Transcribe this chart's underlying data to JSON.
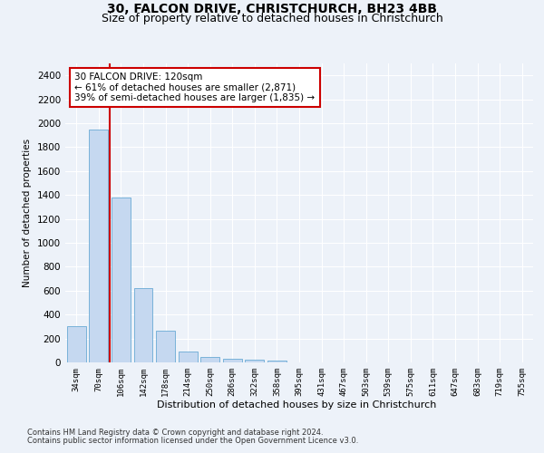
{
  "title_line1": "30, FALCON DRIVE, CHRISTCHURCH, BH23 4BB",
  "title_line2": "Size of property relative to detached houses in Christchurch",
  "xlabel": "Distribution of detached houses by size in Christchurch",
  "ylabel": "Number of detached properties",
  "footer_line1": "Contains HM Land Registry data © Crown copyright and database right 2024.",
  "footer_line2": "Contains public sector information licensed under the Open Government Licence v3.0.",
  "categories": [
    "34sqm",
    "70sqm",
    "106sqm",
    "142sqm",
    "178sqm",
    "214sqm",
    "250sqm",
    "286sqm",
    "322sqm",
    "358sqm",
    "395sqm",
    "431sqm",
    "467sqm",
    "503sqm",
    "539sqm",
    "575sqm",
    "611sqm",
    "647sqm",
    "683sqm",
    "719sqm",
    "755sqm"
  ],
  "values": [
    305,
    1945,
    1375,
    620,
    268,
    93,
    42,
    32,
    22,
    15,
    0,
    0,
    0,
    0,
    0,
    0,
    0,
    0,
    0,
    0,
    0
  ],
  "bar_color": "#c5d8f0",
  "bar_edge_color": "#6aaad4",
  "vline_x": 1.5,
  "vline_color": "#cc0000",
  "annotation_box_text": "30 FALCON DRIVE: 120sqm\n← 61% of detached houses are smaller (2,871)\n39% of semi-detached houses are larger (1,835) →",
  "annotation_box_color": "#cc0000",
  "ylim": [
    0,
    2500
  ],
  "yticks": [
    0,
    200,
    400,
    600,
    800,
    1000,
    1200,
    1400,
    1600,
    1800,
    2000,
    2200,
    2400
  ],
  "background_color": "#edf2f9",
  "plot_bg_color": "#edf2f9",
  "grid_color": "#ffffff",
  "title_fontsize": 10,
  "subtitle_fontsize": 9,
  "ann_fontsize": 7.5
}
